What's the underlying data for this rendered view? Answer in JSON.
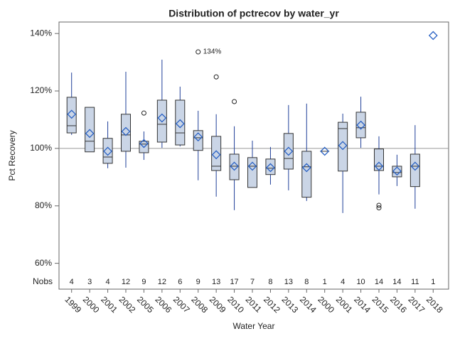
{
  "chart_data": {
    "type": "box",
    "title": "Distribution of pctrecov by water_yr",
    "x_label": "Water Year",
    "y_label": "Pct Recovery",
    "nobs_label": "Nobs",
    "categories": [
      "1999",
      "2000",
      "2001",
      "2002",
      "2005",
      "2006",
      "2007",
      "2008",
      "2009",
      "2010",
      "2011",
      "2012",
      "2013",
      "2014",
      "2000",
      "2001",
      "2014",
      "2015",
      "2016",
      "2017",
      "2018"
    ],
    "whisker_high": [
      126.4,
      114.3,
      109.4,
      126.7,
      105.9,
      130.9,
      121.5,
      113.1,
      111.9,
      107.7,
      102.7,
      100.5,
      115.1,
      115.6,
      null,
      112.1,
      118.0,
      104.2,
      97.8,
      108.1,
      null
    ],
    "q3": [
      117.8,
      114.3,
      103.5,
      111.9,
      102.5,
      116.8,
      116.8,
      106.2,
      104.2,
      98.0,
      96.8,
      96.3,
      105.2,
      99.0,
      null,
      109.1,
      112.6,
      99.8,
      93.8,
      98.0,
      null
    ],
    "median": [
      107.9,
      102.5,
      97.0,
      104.7,
      101.5,
      108.4,
      105.4,
      103.7,
      93.8,
      93.8,
      93.8,
      93.1,
      96.5,
      93.6,
      99.0,
      106.9,
      107.2,
      93.8,
      91.6,
      93.8,
      null
    ],
    "q1": [
      105.4,
      98.8,
      94.8,
      99.0,
      98.5,
      102.2,
      101.2,
      99.3,
      92.3,
      89.1,
      86.4,
      90.9,
      92.8,
      83.0,
      null,
      92.1,
      103.7,
      92.3,
      90.1,
      86.7,
      null
    ],
    "whisker_low": [
      104.7,
      98.8,
      93.1,
      93.3,
      96.0,
      100.2,
      100.7,
      88.9,
      83.2,
      78.5,
      86.4,
      87.4,
      85.4,
      81.7,
      null,
      77.5,
      100.2,
      84.0,
      86.9,
      79.0,
      null
    ],
    "mean": [
      111.9,
      105.2,
      99.0,
      105.9,
      101.7,
      110.6,
      108.6,
      104.0,
      97.8,
      93.8,
      93.8,
      93.3,
      99.0,
      93.3,
      99.0,
      101.0,
      108.1,
      93.8,
      92.1,
      93.8,
      139.3
    ],
    "outliers": [
      [],
      [],
      [],
      [],
      [
        112.3
      ],
      [],
      [],
      [
        133.6
      ],
      [
        124.9
      ],
      [
        116.3
      ],
      [],
      [],
      [],
      [],
      [],
      [],
      [],
      [
        80.2,
        79.3
      ],
      [],
      [],
      []
    ],
    "outlier_labels": [
      [],
      [],
      [],
      [],
      [
        null
      ],
      [],
      [],
      [
        "134%"
      ],
      [
        null
      ],
      [
        null
      ],
      [],
      [],
      [],
      [],
      [],
      [],
      [],
      [
        null,
        null
      ],
      [],
      [],
      []
    ],
    "nobs": [
      4,
      3,
      4,
      12,
      9,
      12,
      6,
      9,
      13,
      17,
      7,
      8,
      13,
      8,
      1,
      4,
      10,
      14,
      14,
      11,
      1
    ],
    "reference_line": 100,
    "ylim": [
      51,
      144
    ],
    "yticks": [
      {
        "value": 60,
        "label": "60%"
      },
      {
        "value": 80,
        "label": "80%"
      },
      {
        "value": 100,
        "label": "100%"
      },
      {
        "value": 120,
        "label": "120%"
      },
      {
        "value": 140,
        "label": "140%"
      }
    ],
    "box_color": "#cad5e6",
    "line_color": "#1f3f99"
  }
}
